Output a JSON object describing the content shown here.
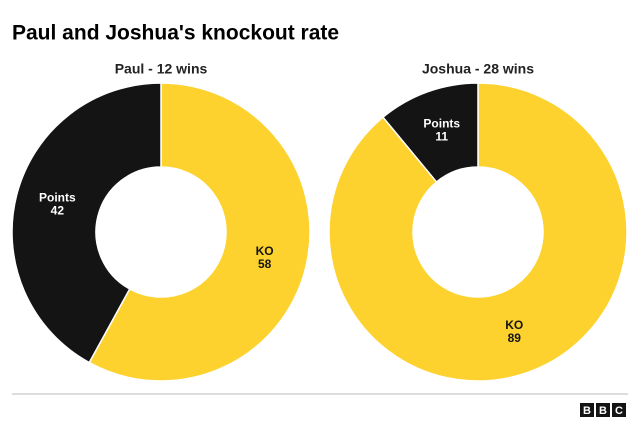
{
  "title": "Paul and Joshua's knockout rate",
  "chart_data": [
    {
      "type": "donut",
      "subtitle": "Paul - 12 wins",
      "categories": [
        "KO",
        "Points"
      ],
      "values": [
        58,
        42
      ],
      "colors": [
        "#fdd22e",
        "#141414"
      ],
      "label_colors": [
        "#141414",
        "#ffffff"
      ]
    },
    {
      "type": "donut",
      "subtitle": "Joshua - 28 wins",
      "categories": [
        "KO",
        "Points"
      ],
      "values": [
        89,
        11
      ],
      "colors": [
        "#fdd22e",
        "#141414"
      ],
      "label_colors": [
        "#141414",
        "#ffffff"
      ]
    }
  ],
  "logo": [
    "B",
    "B",
    "C"
  ]
}
